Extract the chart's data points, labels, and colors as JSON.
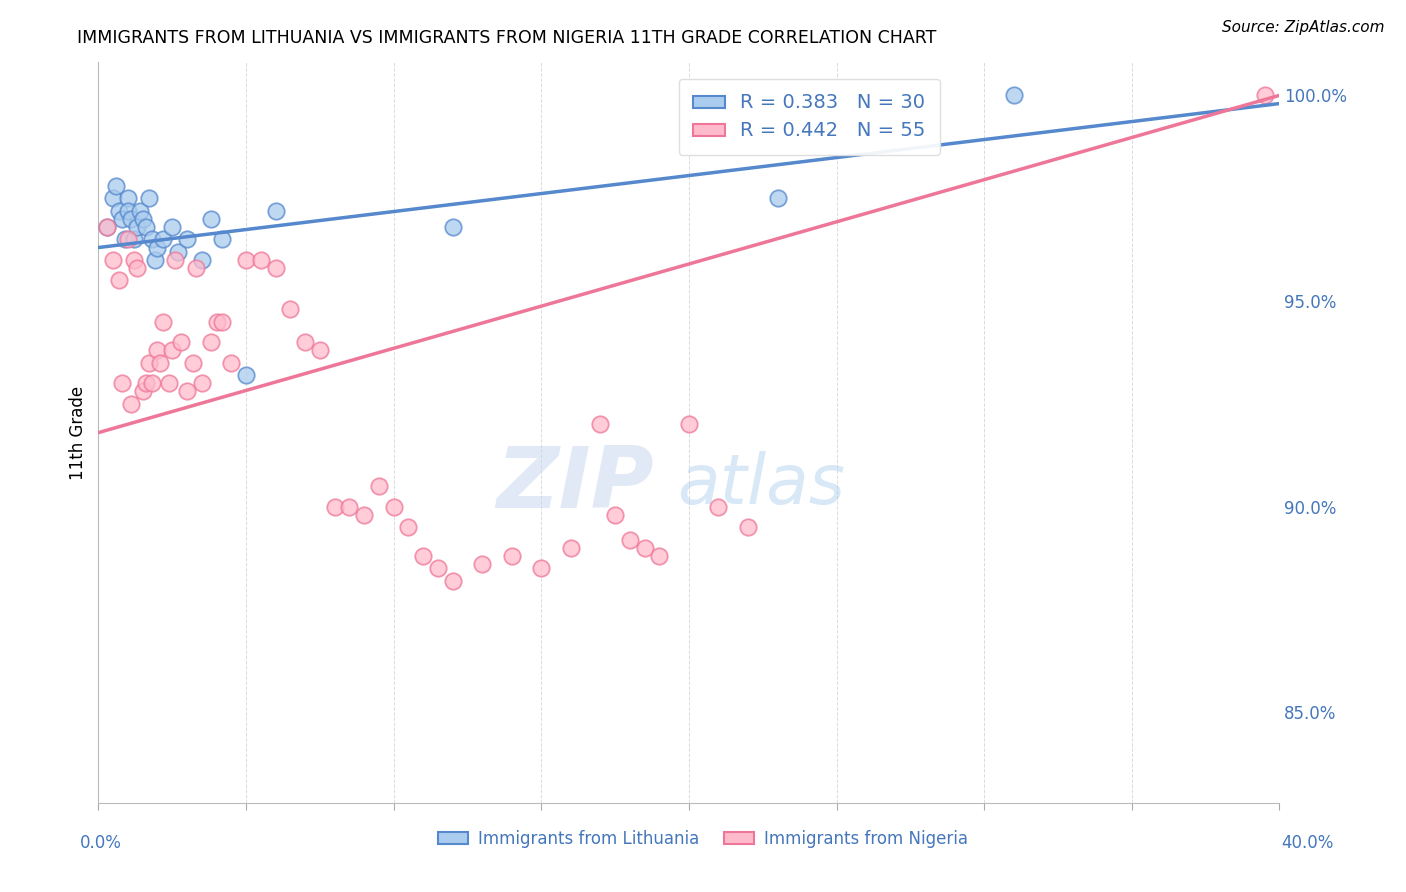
{
  "title": "IMMIGRANTS FROM LITHUANIA VS IMMIGRANTS FROM NIGERIA 11TH GRADE CORRELATION CHART",
  "source": "Source: ZipAtlas.com",
  "ylabel": "11th Grade",
  "ytick_values": [
    0.85,
    0.9,
    0.95,
    1.0
  ],
  "ytick_labels": [
    "85.0%",
    "90.0%",
    "95.0%",
    "100.0%"
  ],
  "xlim": [
    0.0,
    0.4
  ],
  "ylim": [
    0.828,
    1.008
  ],
  "r_lithuania": 0.383,
  "n_lithuania": 30,
  "r_nigeria": 0.442,
  "n_nigeria": 55,
  "blue_scatter_x": [
    0.003,
    0.005,
    0.006,
    0.007,
    0.008,
    0.009,
    0.01,
    0.01,
    0.011,
    0.012,
    0.013,
    0.014,
    0.015,
    0.016,
    0.017,
    0.018,
    0.019,
    0.02,
    0.022,
    0.025,
    0.027,
    0.03,
    0.035,
    0.038,
    0.042,
    0.05,
    0.06,
    0.12,
    0.23,
    0.31
  ],
  "blue_scatter_y": [
    0.968,
    0.975,
    0.978,
    0.972,
    0.97,
    0.965,
    0.975,
    0.972,
    0.97,
    0.965,
    0.968,
    0.972,
    0.97,
    0.968,
    0.975,
    0.965,
    0.96,
    0.963,
    0.965,
    0.968,
    0.962,
    0.965,
    0.96,
    0.97,
    0.965,
    0.932,
    0.972,
    0.968,
    0.975,
    1.0
  ],
  "pink_scatter_x": [
    0.003,
    0.005,
    0.007,
    0.008,
    0.01,
    0.011,
    0.012,
    0.013,
    0.015,
    0.016,
    0.017,
    0.018,
    0.02,
    0.021,
    0.022,
    0.024,
    0.025,
    0.026,
    0.028,
    0.03,
    0.032,
    0.033,
    0.035,
    0.038,
    0.04,
    0.042,
    0.045,
    0.05,
    0.055,
    0.06,
    0.065,
    0.07,
    0.075,
    0.08,
    0.085,
    0.09,
    0.095,
    0.1,
    0.105,
    0.11,
    0.115,
    0.12,
    0.13,
    0.14,
    0.15,
    0.16,
    0.17,
    0.175,
    0.18,
    0.185,
    0.19,
    0.2,
    0.21,
    0.22,
    0.395
  ],
  "pink_scatter_y": [
    0.968,
    0.96,
    0.955,
    0.93,
    0.965,
    0.925,
    0.96,
    0.958,
    0.928,
    0.93,
    0.935,
    0.93,
    0.938,
    0.935,
    0.945,
    0.93,
    0.938,
    0.96,
    0.94,
    0.928,
    0.935,
    0.958,
    0.93,
    0.94,
    0.945,
    0.945,
    0.935,
    0.96,
    0.96,
    0.958,
    0.948,
    0.94,
    0.938,
    0.9,
    0.9,
    0.898,
    0.905,
    0.9,
    0.895,
    0.888,
    0.885,
    0.882,
    0.886,
    0.888,
    0.885,
    0.89,
    0.92,
    0.898,
    0.892,
    0.89,
    0.888,
    0.92,
    0.9,
    0.895,
    1.0
  ],
  "blue_line_x": [
    0.0,
    0.4
  ],
  "blue_line_y": [
    0.963,
    0.998
  ],
  "pink_line_x": [
    0.0,
    0.4
  ],
  "pink_line_y": [
    0.918,
    1.0
  ],
  "blue_color": "#5588CC",
  "pink_color": "#EE7799",
  "blue_fill": "#AACCEE",
  "pink_fill": "#FFBBCC",
  "text_color": "#4477BB",
  "watermark_zip": "ZIP",
  "watermark_atlas": "atlas",
  "background_color": "#FFFFFF",
  "grid_color": "#CCCCCC"
}
